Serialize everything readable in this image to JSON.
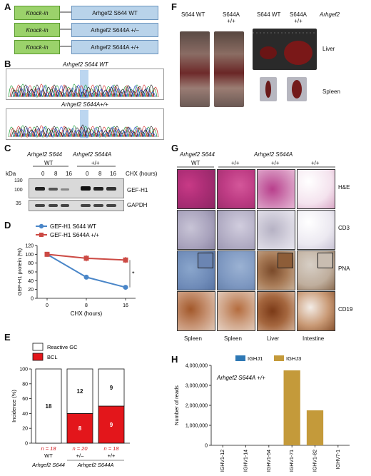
{
  "panelA": {
    "letter": "A",
    "knockin_label": "Knock-in",
    "rows": [
      "Arhgef2 S644 WT",
      "Arhgef2 S644A +/–",
      "Arhgef2 S644A +/+"
    ]
  },
  "panelB": {
    "letter": "B",
    "trace1_title": "Arhgef2 S644 WT",
    "trace2_title": "Arhgef2 S644A+/+"
  },
  "panelC": {
    "letter": "C",
    "group1": "Arhgef2 S644",
    "group1_sub": "WT",
    "group2": "Arhgef2 S644A",
    "group2_sub": "+/+",
    "kda": "kDa",
    "markers": [
      "130",
      "100",
      "35"
    ],
    "chx_values": [
      "0",
      "8",
      "16",
      "0",
      "8",
      "16"
    ],
    "chx_label": "CHX (hours)",
    "bands": [
      "GEF-H1",
      "GAPDH"
    ]
  },
  "chart_data": [
    {
      "type": "line",
      "panel": "D",
      "xlabel": "CHX (hours)",
      "ylabel": "GEF-H1 protein (%)",
      "x": [
        0,
        8,
        16
      ],
      "ylim": [
        0,
        120
      ],
      "yticks": [
        0,
        20,
        40,
        60,
        80,
        100,
        120
      ],
      "series": [
        {
          "name": "GEF-H1 S644 WT",
          "values": [
            100,
            48,
            25
          ],
          "color": "#4a86c8"
        },
        {
          "name": "GEF-H1 S644A +/+",
          "values": [
            100,
            91,
            87
          ],
          "color": "#cc4a44"
        }
      ],
      "annotation": "*"
    },
    {
      "type": "bar",
      "panel": "E",
      "ylabel": "Incidence (%)",
      "ylim": [
        0,
        100
      ],
      "yticks": [
        0,
        20,
        40,
        60,
        80,
        100
      ],
      "categories": [
        "WT",
        "+/–",
        "+/+"
      ],
      "series": [
        {
          "name": "BCL",
          "values": [
            0,
            40,
            50
          ],
          "counts": [
            "",
            "8",
            "9"
          ],
          "color": "#e3161b"
        },
        {
          "name": "Reactive GC",
          "values": [
            100,
            60,
            50
          ],
          "counts": [
            "18",
            "12",
            "9"
          ],
          "color": "#ffffff"
        }
      ],
      "n_labels": [
        "n = 18",
        "n = 20",
        "n = 18"
      ],
      "group_labels": [
        "Arhgef2 S644",
        "Arhgef2 S644A"
      ]
    },
    {
      "type": "bar",
      "panel": "H",
      "ylabel": "Number of reads",
      "ylim": [
        0,
        4000000
      ],
      "yticks": [
        "0",
        "1,000,000",
        "2,000,000",
        "3,000,000",
        "4,000,000"
      ],
      "categories": [
        "IGHV1-12",
        "IGHV1-14",
        "IGHV1-54",
        "IGHV1-71",
        "IGHV1-82",
        "IGHV7-1"
      ],
      "series": [
        {
          "name": "IGHJ1",
          "values": [
            0,
            0,
            0,
            0,
            0,
            0
          ],
          "color": "#2e78b4"
        },
        {
          "name": "IGHJ3",
          "values": [
            0,
            0,
            0,
            3750000,
            1750000,
            0
          ],
          "color": "#c49a3a"
        }
      ],
      "annotation": "Arhgef2 S644A +/+"
    }
  ],
  "panelD": {
    "letter": "D"
  },
  "panelE": {
    "letter": "E"
  },
  "panelF": {
    "letter": "F",
    "cols": [
      "S644 WT",
      "S644A +/+",
      "S644 WT",
      "S644A +/+"
    ],
    "gene": "Arhgef2",
    "rows": [
      "Liver",
      "Spleen"
    ]
  },
  "panelG": {
    "letter": "G",
    "header1": "Arhgef2 S644",
    "header2": "Arhgef2 S644A",
    "genotypes": [
      "WT",
      "+/+",
      "+/+",
      "+/+"
    ],
    "stains": [
      "H&E",
      "CD3",
      "PNA",
      "CD19"
    ],
    "tissues": [
      "Spleen",
      "Spleen",
      "Liver",
      "Intestine"
    ]
  },
  "panelH": {
    "letter": "H"
  }
}
